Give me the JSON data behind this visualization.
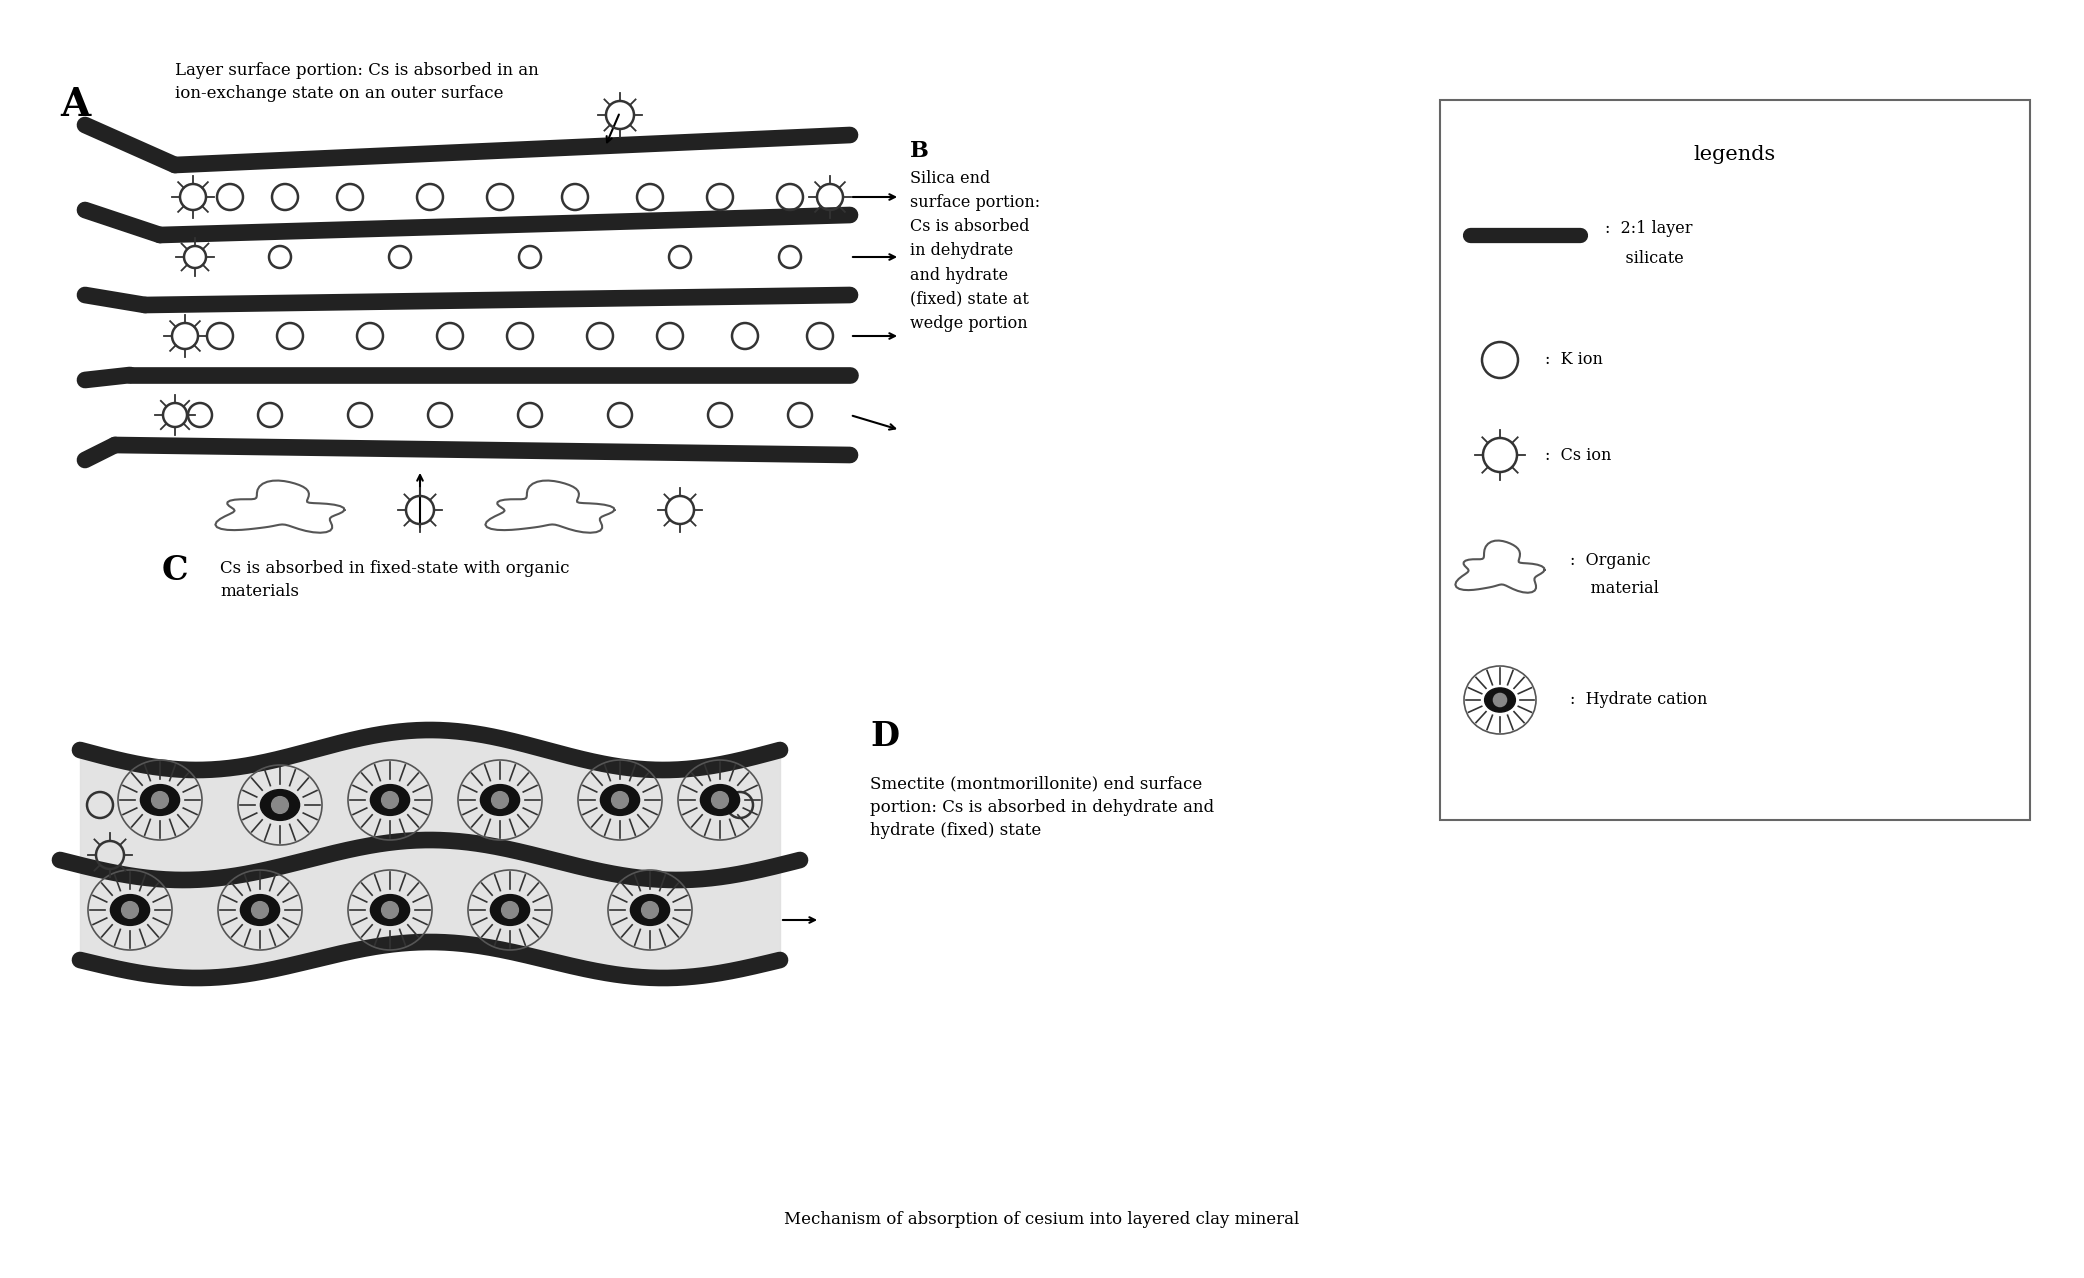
{
  "bg_color": "#ffffff",
  "title": "Mechanism of absorption of cesium into layered clay mineral",
  "title_fontsize": 12,
  "label_A": "A",
  "label_B": "B",
  "label_C": "C",
  "label_D": "D",
  "text_A": "Layer surface portion: Cs is absorbed in an\nion-exchange state on an outer surface",
  "text_B": "Silica end\nsurface portion:\nCs is absorbed\nin dehydrate\nand hydrate\n(fixed) state at\nwedge portion",
  "text_C": "Cs is absorbed in fixed-state with organic\nmaterials",
  "text_D": "Smectite (montmorillonite) end surface\nportion: Cs is absorbed in dehydrate and\nhydrate (fixed) state",
  "legend_title": "legends",
  "layer_color": "#222222",
  "layer_lw": 12,
  "ion_color": "#333333",
  "ion_lw": 1.8
}
